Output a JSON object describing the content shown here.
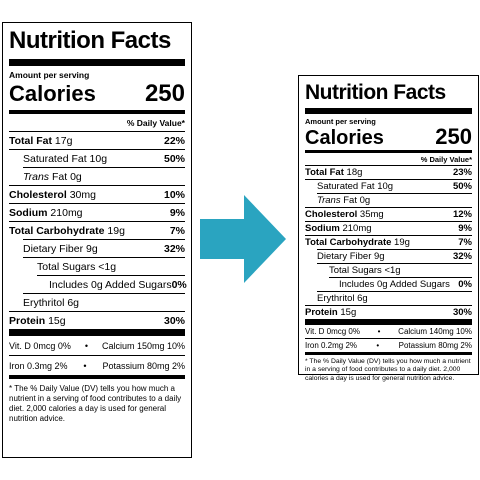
{
  "left": {
    "title": "Nutrition Facts",
    "amount_per_serving": "Amount per serving",
    "calories_label": "Calories",
    "calories_value": "250",
    "daily_value_header": "% Daily Value*",
    "total_fat": {
      "label": "Total Fat",
      "amount": "17g",
      "dv": "22%"
    },
    "saturated_fat": {
      "label": "Saturated Fat 10g",
      "dv": "50%"
    },
    "trans_fat": {
      "label_italic": "Trans",
      "label_rest": " Fat 0g"
    },
    "cholesterol": {
      "label": "Cholesterol",
      "amount": "30mg",
      "dv": "10%"
    },
    "sodium": {
      "label": "Sodium",
      "amount": "210mg",
      "dv": "9%"
    },
    "total_carb": {
      "label": "Total Carbohydrate",
      "amount": "19g",
      "dv": "7%"
    },
    "dietary_fiber": {
      "label": "Dietary Fiber 9g",
      "dv": "32%"
    },
    "total_sugars": {
      "label": "Total Sugars <1g"
    },
    "added_sugars": {
      "label": "Includes 0g Added Sugars",
      "dv": "0%"
    },
    "erythritol": {
      "label": "Erythritol 6g"
    },
    "protein": {
      "label": "Protein",
      "amount": "15g",
      "dv": "30%"
    },
    "vit_d": "Vit. D 0mcg 0%",
    "calcium": "Calcium 150mg 10%",
    "iron": "Iron 0.3mg 2%",
    "potassium": "Potassium 80mg 2%",
    "bullet": "•",
    "footnote": "* The % Daily Value (DV) tells you how much a nutrient in a serving of food contributes to a daily diet. 2,000 calories a day is used for general nutrition advice."
  },
  "right": {
    "title": "Nutrition Facts",
    "amount_per_serving": "Amount per serving",
    "calories_label": "Calories",
    "calories_value": "250",
    "daily_value_header": "% Daily Value*",
    "total_fat": {
      "label": "Total Fat",
      "amount": "18g",
      "dv": "23%"
    },
    "saturated_fat": {
      "label": "Saturated Fat 10g",
      "dv": "50%"
    },
    "trans_fat": {
      "label_italic": "Trans",
      "label_rest": " Fat 0g"
    },
    "cholesterol": {
      "label": "Cholesterol",
      "amount": "35mg",
      "dv": "12%"
    },
    "sodium": {
      "label": "Sodium",
      "amount": "210mg",
      "dv": "9%"
    },
    "total_carb": {
      "label": "Total Carbohydrate",
      "amount": "19g",
      "dv": "7%"
    },
    "dietary_fiber": {
      "label": "Dietary Fiber 9g",
      "dv": "32%"
    },
    "total_sugars": {
      "label": "Total Sugars <1g"
    },
    "added_sugars": {
      "label": "Includes 0g Added Sugars",
      "dv": "0%"
    },
    "erythritol": {
      "label": "Erythritol 6g"
    },
    "protein": {
      "label": "Protein",
      "amount": "15g",
      "dv": "30%"
    },
    "vit_d": "Vit. D 0mcg 0%",
    "calcium": "Calcium 140mg 10%",
    "iron": "Iron 0.2mg 2%",
    "potassium": "Potassium 80mg 2%",
    "bullet": "•",
    "footnote": "* The % Daily Value (DV) tells you how much a nutrient in a serving of food contributes to a daily diet. 2,000 calories a day is used for general nutrition advice."
  },
  "arrow": {
    "icon": "right-arrow-icon",
    "color": "#2aa4c0"
  }
}
